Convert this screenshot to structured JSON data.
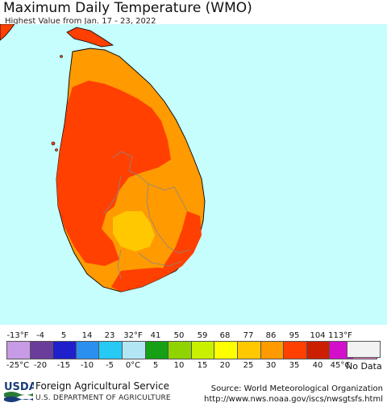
{
  "header": {
    "title": "Maximum Daily Temperature (WMO)",
    "subtitle": "Highest Value from Jan. 17 - 23, 2022"
  },
  "colors": {
    "sea": "#c6fdfd",
    "land_hot": "#ff4000",
    "land_warm": "#ff9a00",
    "land_mild": "#ffc800",
    "boundary": "#888888",
    "coastline": "#000000"
  },
  "legend": {
    "fahrenheit_ticks": [
      "-13°F",
      "-4",
      "5",
      "14",
      "23",
      "32°F",
      "41",
      "50",
      "59",
      "68",
      "77",
      "86",
      "95",
      "104",
      "113°F"
    ],
    "celsius_ticks": [
      "-25°C",
      "-20",
      "-15",
      "-10",
      "-5",
      "0°C",
      "5",
      "10",
      "15",
      "20",
      "25",
      "30",
      "35",
      "40",
      "45°C"
    ],
    "swatches": [
      "#c89be6",
      "#6a3d9a",
      "#1f1fcc",
      "#2b8ff0",
      "#27c9f5",
      "#b3e6f5",
      "#15a015",
      "#8fd400",
      "#c8f000",
      "#ffff00",
      "#ffc800",
      "#ff9a00",
      "#ff4000",
      "#cc1e00",
      "#d40fcc",
      "#f07ad0"
    ],
    "no_data_label": "No Data",
    "no_data_color": "#f2f2f2"
  },
  "footer": {
    "logo_text": "USDA",
    "agency": "Foreign Agricultural Service",
    "department": "U.S. DEPARTMENT OF AGRICULTURE",
    "source": "Source: World Meteorological Organization",
    "url": "http://www.nws.noaa.gov/iscs/nwsgtsfs.html"
  }
}
